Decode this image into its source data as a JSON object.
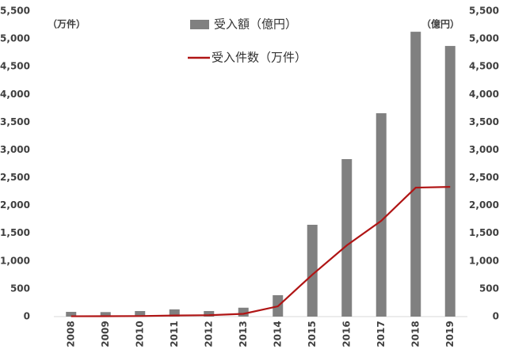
{
  "chart_data": {
    "type": "bar_line",
    "y_label": "（万件）",
    "y2_label": "（億円）",
    "categories": [
      "2008",
      "2009",
      "2010",
      "2011",
      "2012",
      "2013",
      "2014",
      "2015",
      "2016",
      "2017",
      "2018",
      "2019"
    ],
    "series": [
      {
        "name": "受入額（億円）",
        "type": "bar",
        "axis": "y2",
        "color": "#808080",
        "values": [
          85,
          81,
          100,
          130,
          100,
          160,
          385,
          1653,
          2835,
          3661,
          5128,
          4872
        ]
      },
      {
        "name": "受入件数（万件）",
        "type": "line",
        "axis": "y",
        "color": "#b01515",
        "values": [
          6,
          7,
          10,
          20,
          25,
          50,
          185,
          755,
          1282,
          1724,
          2322,
          2335
        ]
      }
    ],
    "ylim": [
      0,
      5500
    ],
    "yticks": [
      0,
      500,
      {
        "value": 1000,
        "label": "1,000"
      },
      {
        "value": 1500,
        "label": "1,500"
      },
      {
        "value": 2000,
        "label": "2,000"
      },
      {
        "value": 2500,
        "label": "2,500"
      },
      {
        "value": 3000,
        "label": "3,000"
      },
      {
        "value": 3500,
        "label": "3,500"
      },
      {
        "value": 4000,
        "label": "4,000"
      },
      {
        "value": 4500,
        "label": "4,500"
      },
      {
        "value": 5000,
        "label": "5,000"
      },
      {
        "value": 5500,
        "label": "5,500"
      }
    ],
    "y2lim": [
      0,
      5500
    ],
    "y2ticks": [
      0,
      500,
      {
        "value": 1000,
        "label": "1,000"
      },
      {
        "value": 1500,
        "label": "1,500"
      },
      {
        "value": 2000,
        "label": "2,000"
      },
      {
        "value": 2500,
        "label": "2,500"
      },
      {
        "value": 3000,
        "label": "3,000"
      },
      {
        "value": 3500,
        "label": "3,500"
      },
      {
        "value": 4000,
        "label": "4,000"
      },
      {
        "value": 4500,
        "label": "4,500"
      },
      {
        "value": 5000,
        "label": "5,000"
      },
      {
        "value": 5500,
        "label": "5,500"
      }
    ],
    "grid": false
  }
}
